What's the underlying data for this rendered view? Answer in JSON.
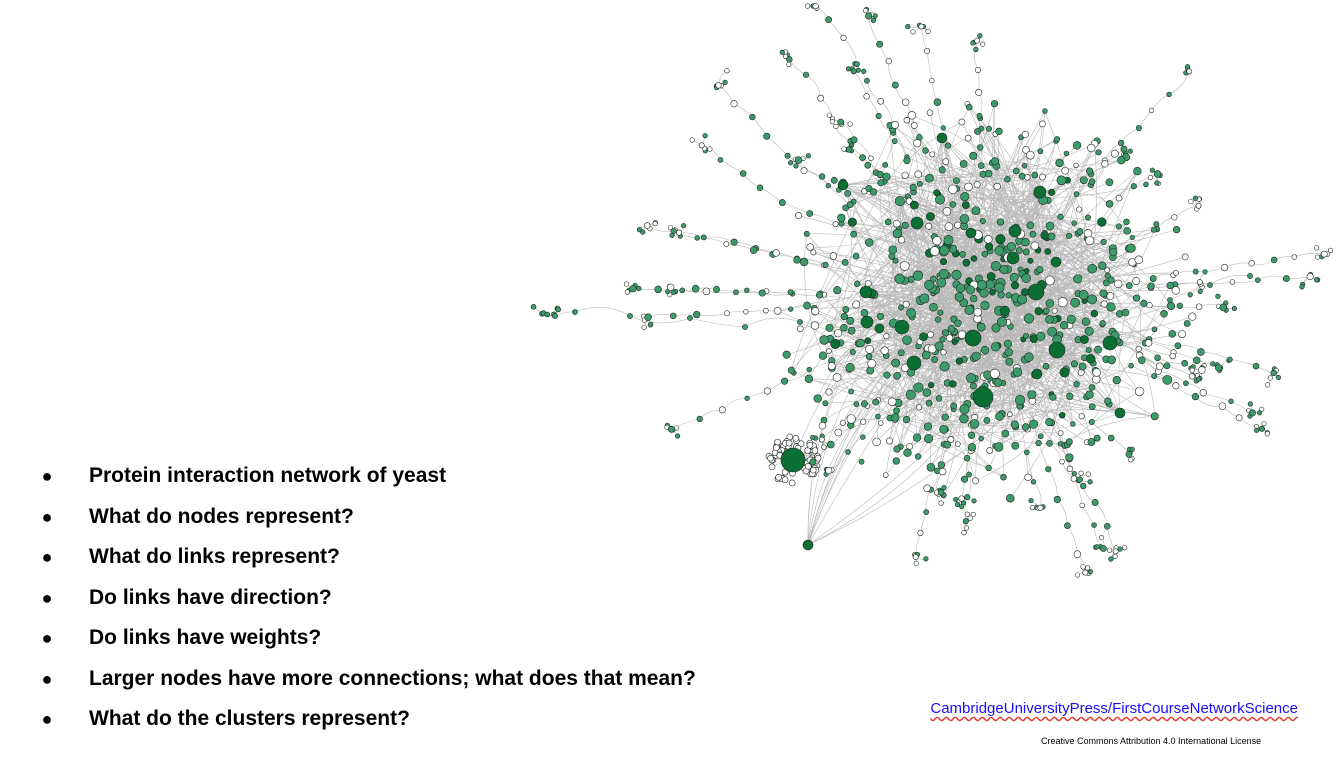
{
  "figure": {
    "node_fill_hub": "#0b6e33",
    "node_fill_mid": "#3d9a6a",
    "node_fill_leaf": "#ffffff",
    "node_stroke": "#1f2a22",
    "edge_color": "#b9b9b9"
  },
  "bullets": [
    {
      "text": "Protein interaction network of yeast"
    },
    {
      "text": "What do nodes represent?"
    },
    {
      "text": "What do links represent?"
    },
    {
      "text": "Do links have direction?"
    },
    {
      "text": "Do links have weights?"
    },
    {
      "text": "Larger nodes have more connections; what does that mean?"
    },
    {
      "text": "What do the clusters represent?"
    }
  ],
  "bullet_glyph": "●",
  "source": {
    "link_text": "CambridgeUniversityPress/FirstCourseNetworkScience",
    "link_color": "#1a0dff"
  },
  "license_text": "Creative Commons Attribution 4.0 International License"
}
